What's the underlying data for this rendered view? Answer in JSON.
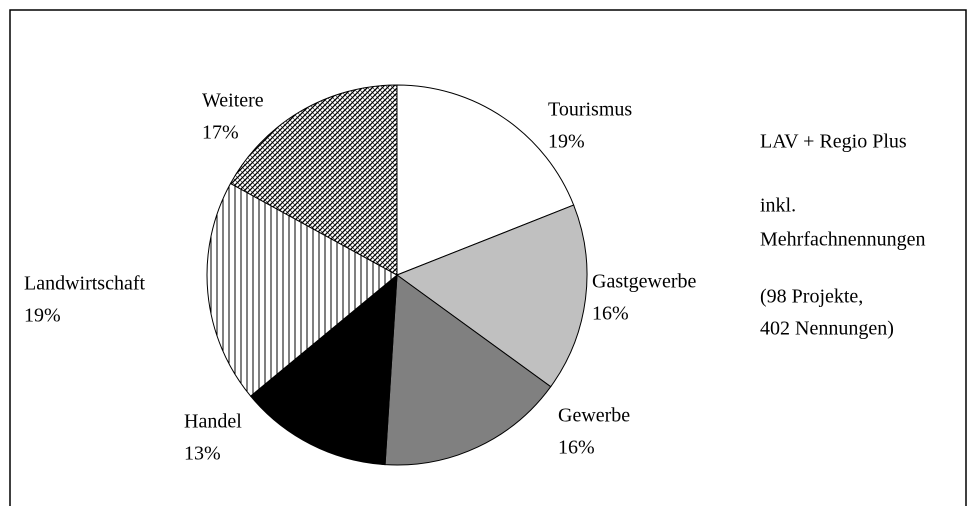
{
  "chart_data": {
    "type": "pie",
    "categories": [
      "Tourismus",
      "Gastgewerbe",
      "Gewerbe",
      "Handel",
      "Landwirtschaft",
      "Weitere"
    ],
    "values": [
      19,
      16,
      16,
      13,
      19,
      17
    ],
    "value_labels": [
      "19%",
      "16%",
      "16%",
      "13%",
      "19%",
      "17%"
    ],
    "fills": [
      "#ffffff",
      "#c0c0c0",
      "#808080",
      "#000000",
      "vertical-lines",
      "diagonal-lines"
    ],
    "annotations": [
      "LAV + Regio Plus",
      "inkl.",
      "Mehrfachnennungen",
      "(98 Projekte,",
      "402 Nennungen)"
    ]
  }
}
